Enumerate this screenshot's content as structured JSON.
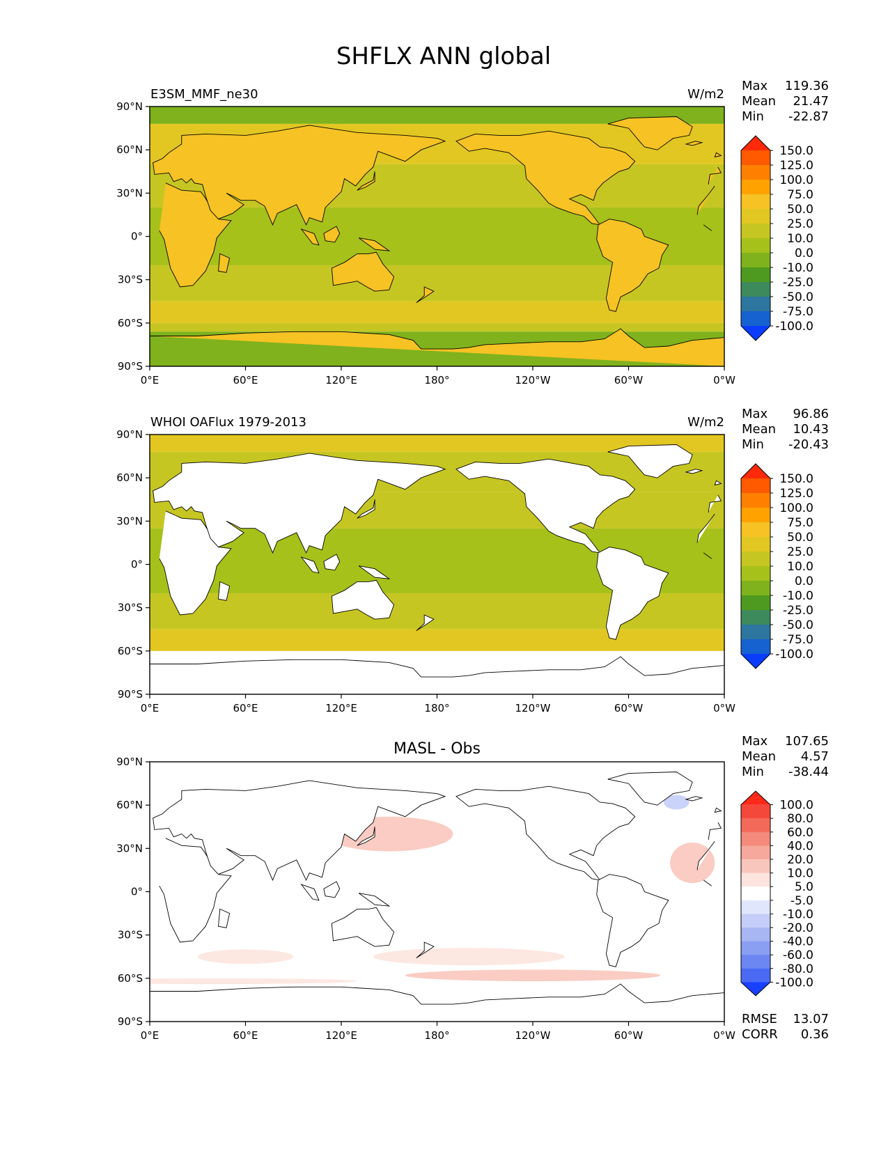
{
  "figure": {
    "title": "SHFLX ANN global"
  },
  "axes": {
    "lat_ticks": [
      "90°N",
      "60°N",
      "30°N",
      "0°",
      "30°S",
      "60°S",
      "90°S"
    ],
    "lon_ticks": [
      "0°E",
      "60°E",
      "120°E",
      "180°",
      "120°W",
      "60°W",
      "0°W"
    ]
  },
  "panels": [
    {
      "left_title": "E3SM_MMF_ne30",
      "center_title": "",
      "units": "W/m2",
      "stats": {
        "max_label": "Max",
        "max": "119.36",
        "mean_label": "Mean",
        "mean": "21.47",
        "min_label": "Min",
        "min": "-22.87"
      },
      "style": "model",
      "colorbar": {
        "labels": [
          "150.0",
          "125.0",
          "100.0",
          "75.0",
          "50.0",
          "25.0",
          "10.0",
          "0.0",
          "-10.0",
          "-25.0",
          "-50.0",
          "-75.0",
          "-100.0"
        ],
        "colors": [
          "#ff2a0a",
          "#ff5a00",
          "#ff8000",
          "#ffa200",
          "#f6c224",
          "#e2c722",
          "#c6c623",
          "#a6c11a",
          "#7fb21c",
          "#4e9a20",
          "#3d8a5c",
          "#2d76a0",
          "#1662d0",
          "#0a3cff"
        ]
      }
    },
    {
      "left_title": "WHOI OAFlux 1979-2013",
      "center_title": "",
      "units": "W/m2",
      "stats": {
        "max_label": "Max",
        "max": "96.86",
        "mean_label": "Mean",
        "mean": "10.43",
        "min_label": "Min",
        "min": "-20.43"
      },
      "style": "obs",
      "colorbar": {
        "labels": [
          "150.0",
          "125.0",
          "100.0",
          "75.0",
          "50.0",
          "25.0",
          "10.0",
          "0.0",
          "-10.0",
          "-25.0",
          "-50.0",
          "-75.0",
          "-100.0"
        ],
        "colors": [
          "#ff2a0a",
          "#ff5a00",
          "#ff8000",
          "#ffa200",
          "#f6c224",
          "#e2c722",
          "#c6c623",
          "#a6c11a",
          "#7fb21c",
          "#4e9a20",
          "#3d8a5c",
          "#2d76a0",
          "#1662d0",
          "#0a3cff"
        ]
      }
    },
    {
      "left_title": "",
      "center_title": "MASL - Obs",
      "units": "",
      "stats": {
        "max_label": "Max",
        "max": "107.65",
        "mean_label": "Mean",
        "mean": "4.57",
        "min_label": "Min",
        "min": "-38.44"
      },
      "style": "diff",
      "colorbar": {
        "labels": [
          "100.0",
          "80.0",
          "60.0",
          "40.0",
          "20.0",
          "10.0",
          "5.0",
          "-5.0",
          "-10.0",
          "-20.0",
          "-40.0",
          "-60.0",
          "-80.0",
          "-100.0"
        ],
        "colors": [
          "#ff2a1a",
          "#f4483a",
          "#f46a5a",
          "#f48a7c",
          "#f6a89c",
          "#f9c6bd",
          "#fde4de",
          "#ffffff",
          "#e0e6fc",
          "#c4cef8",
          "#a8b6f4",
          "#8a9ef2",
          "#6c86f2",
          "#4a6af4",
          "#1a40ff"
        ]
      },
      "metrics": {
        "rmse_label": "RMSE",
        "rmse": "13.07",
        "corr_label": "CORR",
        "corr": "0.36"
      }
    }
  ]
}
